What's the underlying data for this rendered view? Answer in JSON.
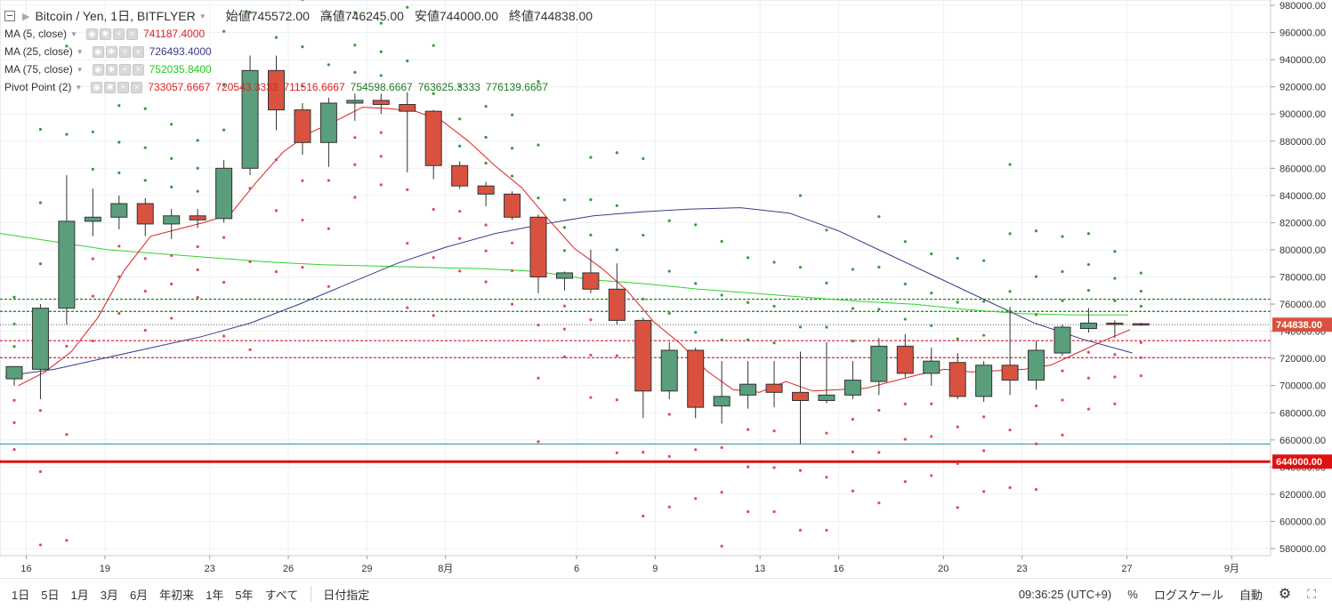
{
  "header": {
    "title": "Bitcoin / Yen, 1日, BITFLYER",
    "ohlc": [
      {
        "label": "始値",
        "value": "745572.00"
      },
      {
        "label": "高値",
        "value": "746245.00"
      },
      {
        "label": "安値",
        "value": "744000.00"
      },
      {
        "label": "終値",
        "value": "744838.00"
      }
    ]
  },
  "indicators": [
    {
      "name": "MA (5, close)",
      "values": [
        "741187.4000"
      ],
      "colors": [
        "#e02020"
      ]
    },
    {
      "name": "MA (25, close)",
      "values": [
        "726493.4000"
      ],
      "colors": [
        "#3a3a8c"
      ]
    },
    {
      "name": "MA (75, close)",
      "values": [
        "752035.8400"
      ],
      "colors": [
        "#22cc22"
      ]
    },
    {
      "name": "Pivot Point (2)",
      "values": [
        "733057.6667",
        "720543.3333",
        "711516.6667",
        "754598.6667",
        "763625.3333",
        "776139.6667"
      ],
      "colors": [
        "#e02020",
        "#e02020",
        "#e02020",
        "#1f7a1f",
        "#1f7a1f",
        "#1f7a1f"
      ]
    }
  ],
  "axis": {
    "y_ticks": [
      "980000.00",
      "960000.00",
      "940000.00",
      "920000.00",
      "900000.00",
      "880000.00",
      "860000.00",
      "840000.00",
      "820000.00",
      "800000.00",
      "780000.00",
      "760000.00",
      "740000.00",
      "720000.00",
      "700000.00",
      "680000.00",
      "660000.00",
      "640000.00",
      "620000.00",
      "600000.00",
      "580000.00"
    ],
    "x_ticks": [
      "16",
      "19",
      "23",
      "26",
      "29",
      "8月",
      "6",
      "9",
      "13",
      "16",
      "20",
      "23",
      "27",
      "9月"
    ],
    "last_price_label": "744838.00",
    "line_label": "644000.00"
  },
  "toolbar": {
    "ranges": [
      "1日",
      "5日",
      "1月",
      "3月",
      "6月",
      "年初来",
      "1年",
      "5年",
      "すべて"
    ],
    "date_button": "日付指定",
    "clock": "09:36:25 (UTC+9)",
    "percent": "%",
    "log": "ログスケール",
    "auto": "自動"
  },
  "chart_data": {
    "type": "candlestick",
    "title": "Bitcoin / Yen, 1日, BITFLYER",
    "ylim": [
      575000,
      985000
    ],
    "horizontal_lines": [
      {
        "value": 644000,
        "color": "#e01010"
      },
      {
        "value": 657000,
        "color": "#2b8a8a"
      },
      {
        "value": 744838,
        "color": "#666666"
      },
      {
        "value": 763625,
        "color": "#2e8b2e"
      },
      {
        "value": 754598,
        "color": "#2e8b2e"
      },
      {
        "value": 733057,
        "color": "#e04050"
      },
      {
        "value": 720543,
        "color": "#e04050"
      }
    ],
    "candles": [
      {
        "o": 705000,
        "h": 713000,
        "l": 700000,
        "c": 714000
      },
      {
        "o": 712000,
        "h": 760000,
        "l": 690000,
        "c": 757000
      },
      {
        "o": 757000,
        "h": 855000,
        "l": 745000,
        "c": 821000
      },
      {
        "o": 821000,
        "h": 845000,
        "l": 810000,
        "c": 824000
      },
      {
        "o": 824000,
        "h": 840000,
        "l": 815000,
        "c": 834000
      },
      {
        "o": 834000,
        "h": 838000,
        "l": 810000,
        "c": 819000
      },
      {
        "o": 819000,
        "h": 830000,
        "l": 808000,
        "c": 825000
      },
      {
        "o": 825000,
        "h": 830000,
        "l": 816000,
        "c": 822000
      },
      {
        "o": 823000,
        "h": 866000,
        "l": 820000,
        "c": 860000
      },
      {
        "o": 860000,
        "h": 943000,
        "l": 855000,
        "c": 932000
      },
      {
        "o": 932000,
        "h": 943000,
        "l": 888000,
        "c": 903000
      },
      {
        "o": 903000,
        "h": 908000,
        "l": 870000,
        "c": 879000
      },
      {
        "o": 879000,
        "h": 912000,
        "l": 861000,
        "c": 908000
      },
      {
        "o": 908000,
        "h": 915000,
        "l": 895000,
        "c": 910000
      },
      {
        "o": 910000,
        "h": 915000,
        "l": 900000,
        "c": 907000
      },
      {
        "o": 907000,
        "h": 916000,
        "l": 857000,
        "c": 902000
      },
      {
        "o": 902000,
        "h": 903000,
        "l": 852000,
        "c": 862000
      },
      {
        "o": 862000,
        "h": 865000,
        "l": 845000,
        "c": 847000
      },
      {
        "o": 847000,
        "h": 850000,
        "l": 832000,
        "c": 841000
      },
      {
        "o": 841000,
        "h": 843000,
        "l": 822000,
        "c": 824000
      },
      {
        "o": 824000,
        "h": 826000,
        "l": 768000,
        "c": 780000
      },
      {
        "o": 779000,
        "h": 784000,
        "l": 770000,
        "c": 783000
      },
      {
        "o": 783000,
        "h": 800000,
        "l": 768000,
        "c": 771000
      },
      {
        "o": 771000,
        "h": 790000,
        "l": 745000,
        "c": 748000
      },
      {
        "o": 748000,
        "h": 750000,
        "l": 676000,
        "c": 696000
      },
      {
        "o": 696000,
        "h": 732000,
        "l": 690000,
        "c": 726000
      },
      {
        "o": 726000,
        "h": 728000,
        "l": 676000,
        "c": 684000
      },
      {
        "o": 685000,
        "h": 718000,
        "l": 672000,
        "c": 692000
      },
      {
        "o": 693000,
        "h": 718000,
        "l": 683000,
        "c": 701000
      },
      {
        "o": 701000,
        "h": 718000,
        "l": 684000,
        "c": 695000
      },
      {
        "o": 695000,
        "h": 725000,
        "l": 657000,
        "c": 689000
      },
      {
        "o": 689000,
        "h": 732000,
        "l": 687000,
        "c": 693000
      },
      {
        "o": 693000,
        "h": 718000,
        "l": 690000,
        "c": 704000
      },
      {
        "o": 703000,
        "h": 735000,
        "l": 693000,
        "c": 729000
      },
      {
        "o": 729000,
        "h": 738000,
        "l": 706000,
        "c": 709000
      },
      {
        "o": 709000,
        "h": 728000,
        "l": 700000,
        "c": 718000
      },
      {
        "o": 717000,
        "h": 724000,
        "l": 690000,
        "c": 692000
      },
      {
        "o": 692000,
        "h": 718000,
        "l": 688000,
        "c": 715000
      },
      {
        "o": 715000,
        "h": 758000,
        "l": 693000,
        "c": 704000
      },
      {
        "o": 704000,
        "h": 733000,
        "l": 697000,
        "c": 726000
      },
      {
        "o": 724000,
        "h": 745000,
        "l": 722000,
        "c": 743000
      },
      {
        "o": 742000,
        "h": 757000,
        "l": 739000,
        "c": 746000
      },
      {
        "o": 746000,
        "h": 748000,
        "l": 735000,
        "c": 745000
      },
      {
        "o": 745572,
        "h": 746245,
        "l": 744000,
        "c": 744838
      }
    ],
    "ma5": [
      700000,
      710000,
      725000,
      750000,
      785000,
      810000,
      815000,
      820000,
      826000,
      850000,
      872000,
      886000,
      895000,
      905000,
      904000,
      902000,
      895000,
      880000,
      862000,
      846000,
      823000,
      801000,
      787000,
      770000,
      747000,
      731000,
      711000,
      697000,
      695000,
      703000,
      696000,
      697000,
      698000,
      703000,
      708000,
      712000,
      710000,
      711000,
      712000,
      715000,
      724000,
      733000,
      741187
    ],
    "ma25": [
      707000,
      712000,
      720000,
      728000,
      736000,
      746000,
      760000,
      775000,
      790000,
      802000,
      812000,
      819000,
      825000,
      828000,
      830000,
      831000,
      827000,
      814000,
      797000,
      780000,
      763000,
      746000,
      734000,
      724000
    ],
    "ma25_start": 0,
    "ma75": [
      812000,
      806000,
      800000,
      797000,
      794000,
      791000,
      789000,
      788000,
      787000,
      786000,
      784000,
      778000,
      775000,
      771000,
      768000,
      765000,
      762000,
      760000,
      756000,
      753000,
      752000,
      752036
    ]
  }
}
